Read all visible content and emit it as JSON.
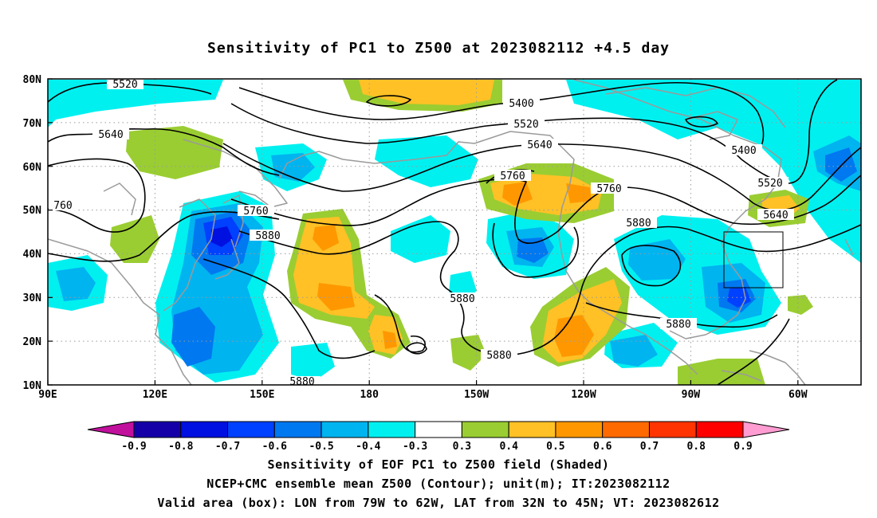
{
  "title": "Sensitivity of PC1 to Z500 at 2023082112 +4.5 day",
  "map": {
    "lat_labels": [
      "80N",
      "70N",
      "60N",
      "50N",
      "40N",
      "30N",
      "20N",
      "10N"
    ],
    "lon_labels": [
      "90E",
      "120E",
      "150E",
      "180",
      "150W",
      "120W",
      "90W",
      "60W"
    ],
    "contour_labels": {
      "c5520a": "5520",
      "c5640a": "5640",
      "c760": "760",
      "c5400a": "5400",
      "c5520b": "5520",
      "c5640b": "5640",
      "c5760a": "5760",
      "c5880a": "5880",
      "c5760b": "5760",
      "c5760c": "5760",
      "c5880b": "5880",
      "c5400b": "5400",
      "c5520c": "5520",
      "c5640c": "5640",
      "c5880c": "5880",
      "c5880d": "5880",
      "c5880e": "5880",
      "c5880f": "5880"
    },
    "valid_box": {
      "lon_from": "79W",
      "lon_to": "62W",
      "lat_from": "32N",
      "lat_to": "45N"
    }
  },
  "colorbar": {
    "labels": [
      "-0.9",
      "-0.8",
      "-0.7",
      "-0.6",
      "-0.5",
      "-0.4",
      "-0.3",
      "0.3",
      "0.4",
      "0.5",
      "0.6",
      "0.7",
      "0.8",
      "0.9"
    ],
    "colors": {
      "low_tip": "#c0109c",
      "bins": [
        "#1500a8",
        "#0010e0",
        "#0040ff",
        "#0078f0",
        "#00b4f0",
        "#00f0f0",
        "#ffffff",
        "#9acd32",
        "#ffc125",
        "#ff9800",
        "#ff6a00",
        "#ff3400",
        "#ff0000"
      ],
      "high_tip": "#ff9cd2"
    }
  },
  "captions": {
    "line1": "Sensitivity of EOF PC1 to Z500 field (Shaded)",
    "line2": "NCEP+CMC ensemble mean Z500 (Contour); unit(m); IT:2023082112",
    "line3": "Valid area (box): LON from 79W to 62W, LAT from 32N to 45N; VT: 2023082612"
  }
}
